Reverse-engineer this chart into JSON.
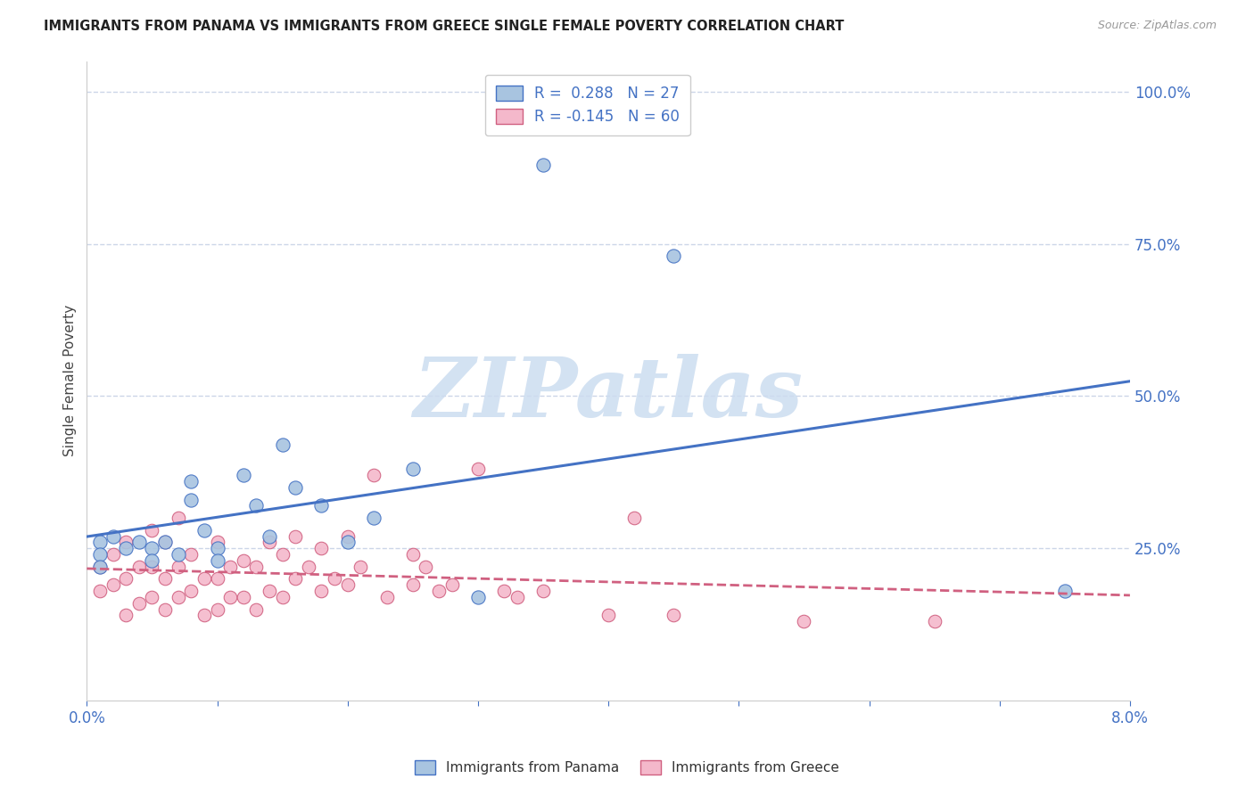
{
  "title": "IMMIGRANTS FROM PANAMA VS IMMIGRANTS FROM GREECE SINGLE FEMALE POVERTY CORRELATION CHART",
  "source": "Source: ZipAtlas.com",
  "ylabel": "Single Female Poverty",
  "right_ytick_vals": [
    1.0,
    0.75,
    0.5,
    0.25
  ],
  "panama_color": "#a8c4e0",
  "greece_color": "#f4b8cb",
  "trendline_panama_color": "#4472c4",
  "trendline_greece_color": "#d06080",
  "xlim": [
    0.0,
    0.08
  ],
  "ylim": [
    0.0,
    1.05
  ],
  "panama_x": [
    0.001,
    0.001,
    0.001,
    0.002,
    0.003,
    0.004,
    0.005,
    0.005,
    0.006,
    0.007,
    0.008,
    0.008,
    0.009,
    0.01,
    0.01,
    0.012,
    0.013,
    0.014,
    0.015,
    0.016,
    0.018,
    0.02,
    0.022,
    0.025,
    0.03,
    0.075,
    0.035,
    0.045
  ],
  "panama_y": [
    0.26,
    0.24,
    0.22,
    0.27,
    0.25,
    0.26,
    0.25,
    0.23,
    0.26,
    0.24,
    0.36,
    0.33,
    0.28,
    0.25,
    0.23,
    0.37,
    0.32,
    0.27,
    0.42,
    0.35,
    0.32,
    0.26,
    0.3,
    0.38,
    0.17,
    0.18,
    0.88,
    0.73
  ],
  "greece_x": [
    0.001,
    0.001,
    0.002,
    0.002,
    0.003,
    0.003,
    0.003,
    0.004,
    0.004,
    0.005,
    0.005,
    0.005,
    0.006,
    0.006,
    0.006,
    0.007,
    0.007,
    0.007,
    0.008,
    0.008,
    0.009,
    0.009,
    0.01,
    0.01,
    0.01,
    0.011,
    0.011,
    0.012,
    0.012,
    0.013,
    0.013,
    0.014,
    0.014,
    0.015,
    0.015,
    0.016,
    0.016,
    0.017,
    0.018,
    0.018,
    0.019,
    0.02,
    0.02,
    0.021,
    0.022,
    0.023,
    0.025,
    0.025,
    0.026,
    0.027,
    0.028,
    0.03,
    0.032,
    0.033,
    0.035,
    0.04,
    0.042,
    0.045,
    0.055,
    0.065
  ],
  "greece_y": [
    0.22,
    0.18,
    0.24,
    0.19,
    0.26,
    0.2,
    0.14,
    0.22,
    0.16,
    0.28,
    0.22,
    0.17,
    0.26,
    0.2,
    0.15,
    0.3,
    0.22,
    0.17,
    0.24,
    0.18,
    0.2,
    0.14,
    0.26,
    0.2,
    0.15,
    0.22,
    0.17,
    0.23,
    0.17,
    0.22,
    0.15,
    0.26,
    0.18,
    0.24,
    0.17,
    0.27,
    0.2,
    0.22,
    0.25,
    0.18,
    0.2,
    0.27,
    0.19,
    0.22,
    0.37,
    0.17,
    0.24,
    0.19,
    0.22,
    0.18,
    0.19,
    0.38,
    0.18,
    0.17,
    0.18,
    0.14,
    0.3,
    0.14,
    0.13,
    0.13
  ],
  "background_color": "#ffffff",
  "grid_color": "#ccd6e8",
  "watermark_text": "ZIPatlas",
  "watermark_color": "#ccddf0"
}
